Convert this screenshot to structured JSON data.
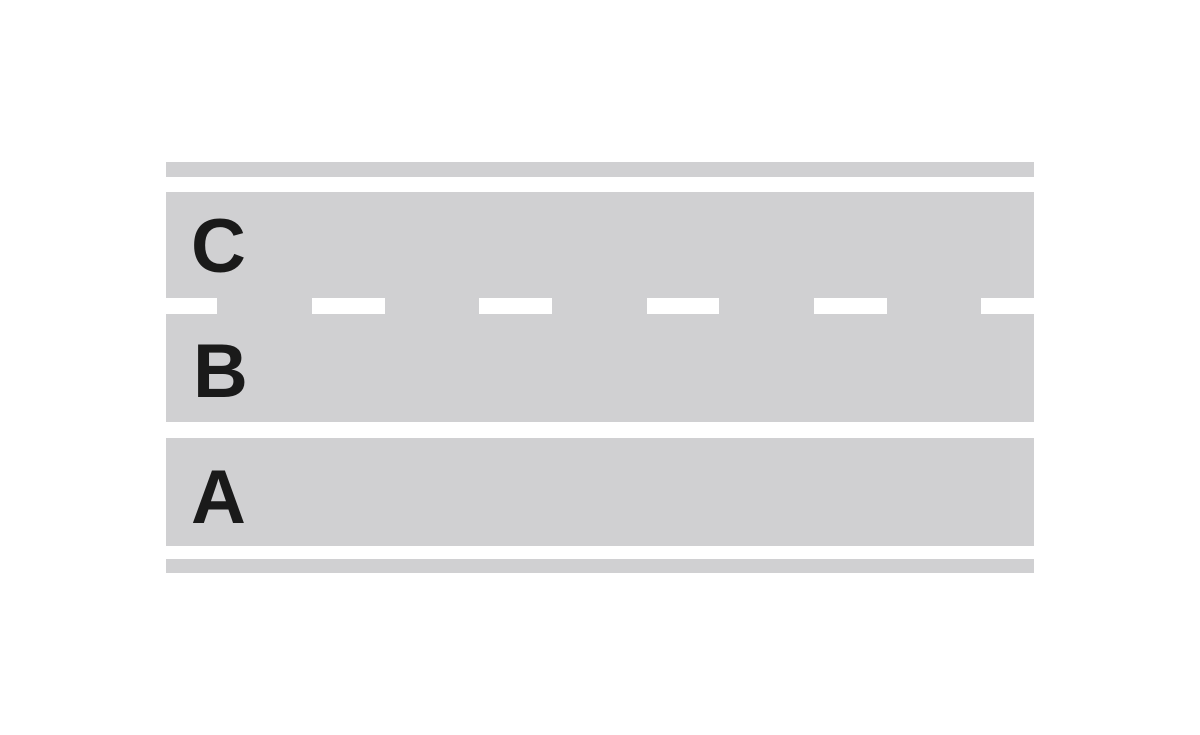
{
  "colors": {
    "background": "#ffffff",
    "asphalt": "#d0d0d2",
    "marking": "#ffffff",
    "label": "#1a1a1a"
  },
  "road": {
    "lanes": [
      {
        "id": "lane-c",
        "label": "C"
      },
      {
        "id": "lane-b",
        "label": "B"
      },
      {
        "id": "lane-a",
        "label": "A"
      }
    ],
    "markings": {
      "top_edge": "solid",
      "between_c_and_b": "dashed",
      "between_b_and_a": "solid",
      "bottom_edge": "solid"
    }
  }
}
